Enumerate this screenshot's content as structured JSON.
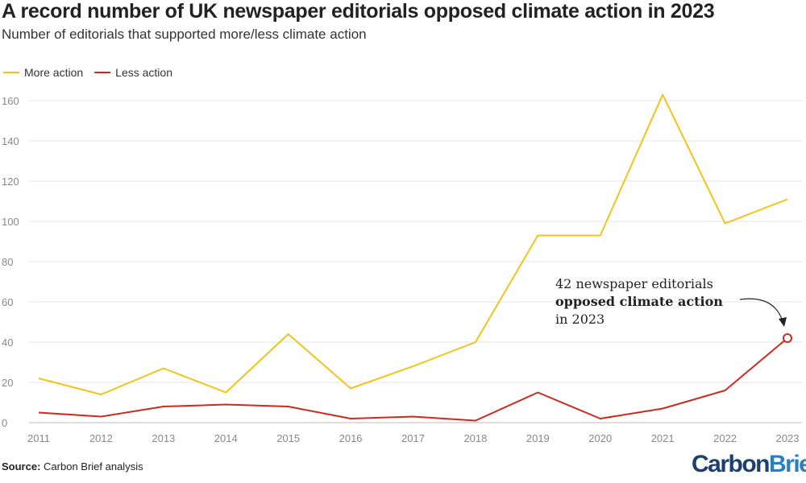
{
  "title": "A record number of UK newspaper editorials opposed climate action in 2023",
  "subtitle": "Number of editorials that supported more/less climate action",
  "source_label": "Source:",
  "source_text": "Carbon Brief analysis",
  "logo": {
    "part1": "Carbon",
    "part2": "Brief"
  },
  "chart_data": {
    "type": "line",
    "x": [
      2011,
      2012,
      2013,
      2014,
      2015,
      2016,
      2017,
      2018,
      2019,
      2020,
      2021,
      2022,
      2023
    ],
    "series": [
      {
        "name": "More action",
        "color": "#f0c419",
        "values": [
          22,
          14,
          27,
          15,
          44,
          17,
          28,
          40,
          93,
          93,
          163,
          99,
          111
        ]
      },
      {
        "name": "Less action",
        "color": "#cc2a1e",
        "values": [
          5,
          3,
          8,
          9,
          8,
          2,
          3,
          1,
          15,
          2,
          7,
          16,
          42
        ]
      }
    ],
    "ylim": [
      0,
      160
    ],
    "yticks": [
      0,
      20,
      40,
      60,
      80,
      100,
      120,
      140,
      160
    ],
    "grid": true,
    "legend": "top-left",
    "annotation": {
      "line1": "42 newspaper editorials",
      "line2": "opposed climate action",
      "line3": "in 2023"
    }
  }
}
